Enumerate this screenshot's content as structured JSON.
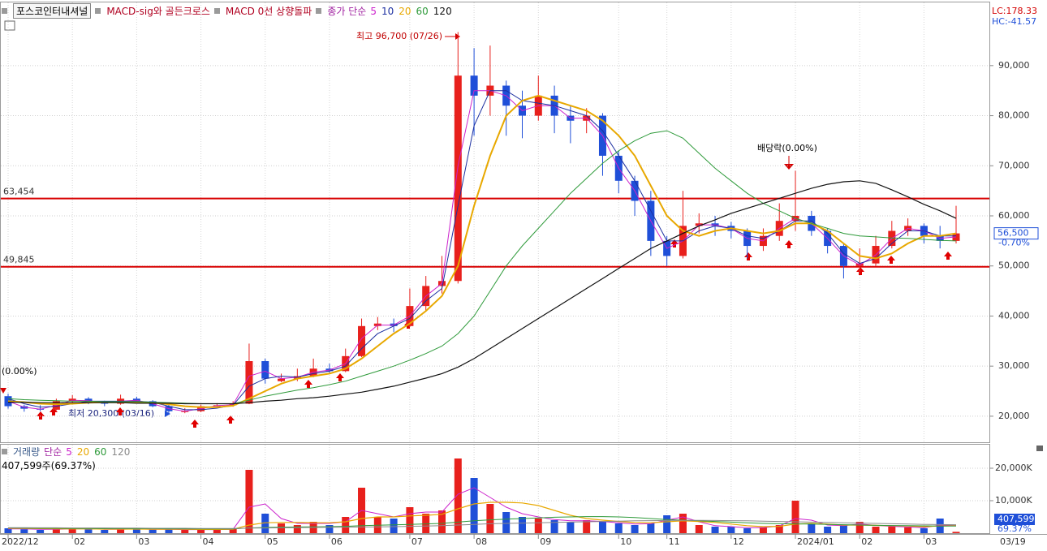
{
  "chart_data": [
    {
      "type": "candlestick",
      "title": "포스코인터내셔널",
      "indicators": [
        "MACD-sig와 골든크로스",
        "MACD 0선 상향돌파"
      ],
      "ma_label": "종가 단순",
      "categories": [
        "2022/12",
        null,
        null,
        null,
        "02",
        null,
        null,
        null,
        "03",
        null,
        null,
        null,
        "04",
        null,
        null,
        null,
        "05",
        null,
        null,
        null,
        "06",
        null,
        null,
        null,
        null,
        "07",
        null,
        null,
        null,
        "08",
        null,
        null,
        null,
        "09",
        null,
        null,
        null,
        null,
        "10",
        null,
        null,
        "11",
        null,
        null,
        null,
        "12",
        null,
        null,
        null,
        "2024/01",
        null,
        null,
        null,
        "02",
        null,
        null,
        null,
        "03",
        null,
        null
      ],
      "open": [
        24000,
        22000,
        21500,
        21300,
        23000,
        23500,
        22800,
        22500,
        23500,
        23000,
        22000,
        20900,
        21000,
        22000,
        22200,
        22500,
        31000,
        27000,
        27500,
        28000,
        29500,
        29000,
        32000,
        38000,
        38500,
        38000,
        42000,
        46000,
        47000,
        88000,
        84000,
        86000,
        82000,
        80000,
        84000,
        80000,
        79000,
        80000,
        72000,
        67000,
        63000,
        55000,
        52000,
        58000,
        58500,
        58000,
        57000,
        54000,
        56000,
        59000,
        60000,
        57000,
        54000,
        50000,
        50500,
        54000,
        57000,
        58000,
        56000,
        55000
      ],
      "high": [
        24500,
        22300,
        22200,
        23500,
        24200,
        23800,
        23100,
        24300,
        23900,
        23200,
        22300,
        21600,
        22300,
        22600,
        23000,
        34500,
        31500,
        28500,
        29500,
        31500,
        30500,
        33500,
        39500,
        39800,
        39500,
        45500,
        48000,
        52000,
        96700,
        93500,
        94000,
        87000,
        85000,
        88000,
        86000,
        82000,
        81500,
        80500,
        73000,
        68000,
        65000,
        56000,
        65000,
        60500,
        60000,
        58800,
        57500,
        57500,
        62500,
        69000,
        61000,
        57500,
        54500,
        53500,
        56000,
        59000,
        59500,
        58500,
        58000,
        62000
      ],
      "low": [
        21500,
        20900,
        21000,
        21200,
        22800,
        22400,
        22000,
        22300,
        22700,
        21800,
        20300,
        20600,
        20800,
        21600,
        21900,
        22400,
        26500,
        26800,
        27000,
        27800,
        28500,
        28800,
        31800,
        37200,
        36800,
        37800,
        41000,
        44500,
        46500,
        76000,
        80000,
        76000,
        75500,
        79000,
        76500,
        74500,
        76500,
        68000,
        64500,
        60000,
        52000,
        50000,
        51500,
        56500,
        56000,
        55500,
        51500,
        53000,
        55000,
        57000,
        56000,
        52500,
        47500,
        48500,
        50000,
        53500,
        56000,
        54500,
        53500,
        54500
      ],
      "close": [
        22000,
        21500,
        21300,
        23000,
        23500,
        22800,
        22500,
        23500,
        23000,
        22000,
        21000,
        21000,
        22000,
        22200,
        22500,
        31000,
        27500,
        27500,
        28000,
        29500,
        29000,
        32000,
        38000,
        38500,
        38000,
        42000,
        46000,
        47000,
        88000,
        84000,
        86000,
        82000,
        80000,
        84000,
        80000,
        79000,
        80000,
        72000,
        67000,
        63000,
        55000,
        52000,
        58000,
        58500,
        58000,
        57000,
        54000,
        56000,
        59000,
        60000,
        57000,
        54000,
        50000,
        50500,
        54000,
        57000,
        58000,
        56000,
        55000,
        56500
      ],
      "up_color": "#e8201c",
      "down_color": "#1f4fd8",
      "series": [
        {
          "name": "5",
          "color": "#cc22cc",
          "values": [
            23000,
            21800,
            21400,
            22200,
            23200,
            23100,
            22700,
            23000,
            23200,
            22500,
            21500,
            21000,
            21500,
            22100,
            22300,
            28000,
            29000,
            27500,
            27800,
            28800,
            29200,
            30500,
            35500,
            38200,
            38200,
            40000,
            44000,
            46500,
            70000,
            85000,
            85000,
            84000,
            81000,
            82000,
            82000,
            79500,
            79500,
            76000,
            69500,
            65000,
            59000,
            53500,
            55000,
            58200,
            58200,
            57500,
            55500,
            55000,
            57500,
            59500,
            58500,
            55500,
            52000,
            50200,
            52200,
            55500,
            57500,
            57000,
            55500,
            55800
          ]
        },
        {
          "name": "10",
          "color": "#1c2fa0",
          "values": [
            23500,
            22500,
            21800,
            22000,
            22500,
            23000,
            23000,
            23000,
            23000,
            22800,
            22000,
            21300,
            21300,
            21600,
            22200,
            26000,
            27500,
            28000,
            27800,
            28500,
            29000,
            30000,
            33500,
            36500,
            38000,
            39500,
            43000,
            45500,
            62000,
            78000,
            85000,
            85000,
            83000,
            82500,
            82000,
            81000,
            80000,
            77000,
            72000,
            67000,
            61000,
            55000,
            55000,
            57000,
            58000,
            57500,
            56000,
            55500,
            57000,
            59000,
            59000,
            56500,
            52500,
            50500,
            51500,
            54500,
            57000,
            57000,
            56000,
            56000
          ]
        },
        {
          "name": "20",
          "color": "#e8a800",
          "values": [
            23000,
            22800,
            22500,
            22400,
            22500,
            22700,
            22800,
            22800,
            22800,
            22700,
            22400,
            22000,
            21800,
            21800,
            22100,
            23500,
            25000,
            26500,
            27500,
            28000,
            28500,
            29500,
            31500,
            34000,
            36500,
            38500,
            41000,
            44000,
            50000,
            62000,
            72000,
            80000,
            83000,
            84000,
            83000,
            82000,
            81000,
            79000,
            76000,
            72000,
            66000,
            60000,
            57000,
            56000,
            57000,
            57500,
            57000,
            56500,
            57000,
            58500,
            58500,
            57000,
            54500,
            52000,
            51500,
            52500,
            54500,
            56000,
            56000,
            56500
          ]
        },
        {
          "name": "60",
          "color": "#2e9a3a",
          "values": [
            23500,
            23300,
            23200,
            23100,
            23000,
            23000,
            22900,
            22900,
            22900,
            22800,
            22700,
            22600,
            22500,
            22500,
            22500,
            23200,
            24000,
            24600,
            25200,
            25700,
            26300,
            27000,
            28000,
            29000,
            30000,
            31200,
            32500,
            34000,
            36500,
            40000,
            45000,
            50000,
            54000,
            57500,
            61000,
            64500,
            67500,
            70500,
            73000,
            75000,
            76500,
            77000,
            75500,
            72500,
            69500,
            67000,
            64500,
            62500,
            61000,
            59500,
            58500,
            57500,
            56500,
            56000,
            55800,
            55600,
            55500,
            55300,
            55100,
            55000
          ]
        },
        {
          "name": "120",
          "color": "#111111",
          "values": [
            22800,
            22800,
            22700,
            22700,
            22700,
            22700,
            22700,
            22700,
            22600,
            22600,
            22600,
            22500,
            22500,
            22500,
            22500,
            22700,
            23000,
            23200,
            23500,
            23700,
            24000,
            24400,
            24800,
            25400,
            26000,
            26800,
            27600,
            28500,
            29800,
            31500,
            33500,
            35500,
            37500,
            39500,
            41500,
            43500,
            45500,
            47500,
            49500,
            51500,
            53500,
            55000,
            56500,
            58000,
            59200,
            60500,
            61500,
            62500,
            63500,
            64500,
            65500,
            66300,
            66800,
            67000,
            66500,
            65200,
            63800,
            62300,
            61000,
            59500
          ]
        }
      ],
      "ylim": [
        14800,
        101800
      ],
      "yticks": [
        {
          "value": 20000,
          "label": "20,000"
        },
        {
          "value": 30000,
          "label": "30,000"
        },
        {
          "value": 40000,
          "label": "40,000"
        },
        {
          "value": 50000,
          "label": "50,000"
        },
        {
          "value": 60000,
          "label": "60,000"
        },
        {
          "value": 70000,
          "label": "70,000"
        },
        {
          "value": 80000,
          "label": "80,000"
        },
        {
          "value": 90000,
          "label": "90,000"
        }
      ],
      "grid": true,
      "hlines": [
        {
          "value": 63454,
          "label": "63,454",
          "color": "#d80000"
        },
        {
          "value": 49845,
          "label": "49,845",
          "color": "#d80000"
        }
      ],
      "annotations": {
        "high": "최고 96,700 (07/26)",
        "low": "최저 20,300 (03/16)",
        "ex_dividend": "배당락(0.00%)",
        "left": "(0.00%)"
      },
      "last_price": {
        "value": 56500,
        "label": "56,500"
      },
      "change": "-0.70%",
      "lc": "LC:178.33",
      "hc": "HC:-41.57",
      "last_date": "03/19"
    },
    {
      "type": "bar",
      "title": "거래량",
      "ma_label": "단순",
      "values": [
        1500,
        1200,
        1000,
        1500,
        1300,
        1200,
        1000,
        1500,
        1200,
        1100,
        1300,
        1000,
        1200,
        1000,
        1500,
        19500,
        6000,
        3000,
        2500,
        3500,
        2500,
        5000,
        14000,
        5000,
        4500,
        8000,
        6000,
        7000,
        23000,
        17000,
        9000,
        6500,
        5000,
        4500,
        4000,
        3500,
        4000,
        3500,
        3000,
        2500,
        3000,
        5500,
        6000,
        2500,
        2000,
        2000,
        1500,
        1800,
        2500,
        10000,
        3000,
        2000,
        2500,
        3500,
        2000,
        2000,
        1800,
        1500,
        4500,
        407.599
      ],
      "series": [
        {
          "name": "5",
          "color": "#cc22cc",
          "values": [
            1300,
            1300,
            1200,
            1200,
            1300,
            1300,
            1200,
            1200,
            1300,
            1200,
            1200,
            1100,
            1100,
            1100,
            1200,
            8000,
            9000,
            4500,
            3000,
            3000,
            3000,
            3500,
            7000,
            6000,
            5000,
            6000,
            6500,
            6500,
            12000,
            14000,
            11000,
            8000,
            6000,
            5000,
            4200,
            3800,
            3800,
            3600,
            3200,
            2800,
            2900,
            4000,
            5000,
            3500,
            2300,
            2000,
            1700,
            1700,
            2200,
            4500,
            4000,
            2500,
            2300,
            2800,
            2400,
            2100,
            1900,
            1700,
            2500,
            2500
          ]
        },
        {
          "name": "20",
          "color": "#e8a800",
          "values": [
            1500,
            1450,
            1400,
            1350,
            1300,
            1300,
            1250,
            1250,
            1250,
            1200,
            1200,
            1200,
            1150,
            1150,
            1200,
            2500,
            3200,
            3300,
            3300,
            3200,
            3200,
            3500,
            4500,
            5000,
            5000,
            5300,
            5500,
            5800,
            7500,
            9000,
            9500,
            9500,
            9300,
            8500,
            7000,
            5500,
            4500,
            4000,
            3600,
            3300,
            3200,
            3500,
            3800,
            3600,
            3300,
            2800,
            2300,
            2000,
            2100,
            2800,
            3000,
            2800,
            2500,
            2500,
            2400,
            2300,
            2200,
            2000,
            2200,
            2300
          ]
        },
        {
          "name": "60",
          "color": "#2e9a3a",
          "values": [
            1600,
            1550,
            1500,
            1500,
            1450,
            1450,
            1400,
            1400,
            1400,
            1400,
            1350,
            1350,
            1300,
            1300,
            1300,
            1600,
            1750,
            1850,
            1900,
            1950,
            2000,
            2100,
            2300,
            2450,
            2550,
            2700,
            2850,
            3000,
            3400,
            3800,
            4100,
            4300,
            4500,
            4700,
            4900,
            5000,
            5100,
            5100,
            5000,
            4800,
            4500,
            4200,
            4000,
            3800,
            3600,
            3400,
            3200,
            3000,
            2900,
            2850,
            2800,
            2700,
            2600,
            2500,
            2400,
            2350,
            2300,
            2250,
            2200,
            2200
          ]
        },
        {
          "name": "120",
          "color": "#8a8a8a",
          "values": [
            1700,
            1700,
            1650,
            1650,
            1600,
            1600,
            1600,
            1550,
            1550,
            1500,
            1500,
            1500,
            1450,
            1450,
            1450,
            1550,
            1600,
            1650,
            1700,
            1750,
            1800,
            1850,
            1900,
            1950,
            2000,
            2100,
            2200,
            2300,
            2500,
            2700,
            2900,
            3000,
            3100,
            3200,
            3300,
            3400,
            3500,
            3600,
            3700,
            3800,
            3850,
            3900,
            3950,
            3950,
            3900,
            3850,
            3800,
            3700,
            3600,
            3500,
            3400,
            3300,
            3200,
            3100,
            3000,
            2900,
            2800,
            2700,
            2650,
            2600
          ]
        }
      ],
      "ylim": [
        0,
        27250
      ],
      "yticks": [
        {
          "value": 10000,
          "label": "10,000K"
        },
        {
          "value": 20000,
          "label": "20,000K"
        }
      ],
      "grid": true,
      "current": {
        "value": 407.599,
        "label": "407,599"
      },
      "current_text": "407,599주(69.37%)",
      "current_ratio": "69.37%"
    }
  ]
}
